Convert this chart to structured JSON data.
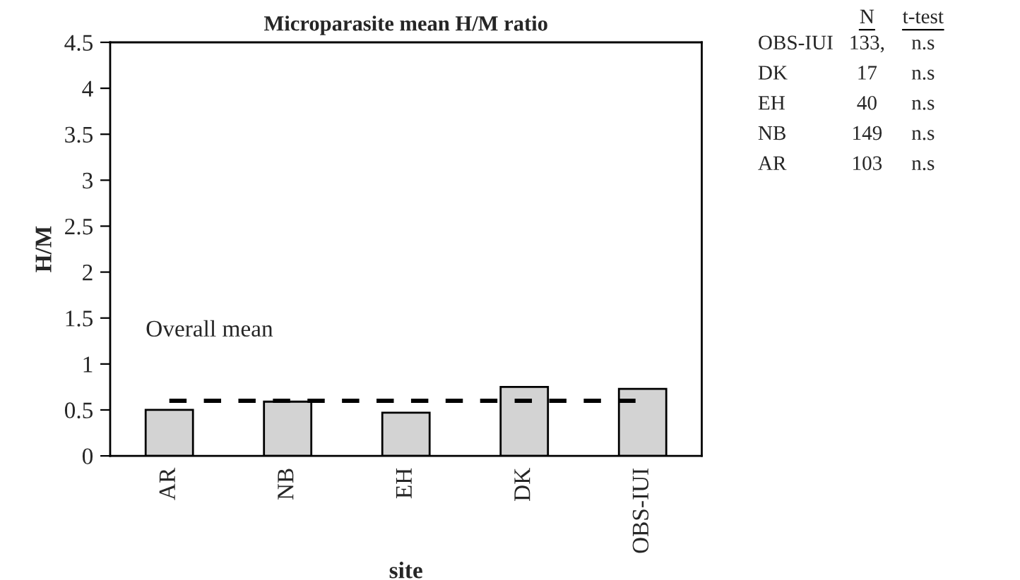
{
  "chart_data": {
    "type": "bar",
    "title": "Microparasite mean H/M ratio",
    "xlabel": "site",
    "ylabel": "H/M",
    "categories": [
      "AR",
      "NB",
      "EH",
      "DK",
      "OBS-IUI"
    ],
    "values": [
      0.5,
      0.59,
      0.47,
      0.75,
      0.73
    ],
    "color": "#d3d3d3",
    "ylim": [
      0,
      4.5
    ],
    "yticks": [
      0,
      0.5,
      1,
      1.5,
      2,
      2.5,
      3,
      3.5,
      4,
      4.5
    ],
    "grid": false,
    "legend": false,
    "ref_lines": [
      {
        "axis": "y",
        "value": 0.6,
        "label": "Overall mean",
        "color": "#000000",
        "line_style": "dashed"
      }
    ],
    "annotations": [
      "N",
      "t-test",
      "OBS-IUI",
      "133,",
      "n.s",
      "DK",
      "17",
      "n.s",
      "EH",
      "40",
      "n.s",
      "NB",
      "149",
      "n.s",
      "AR",
      "103",
      "n.s"
    ]
  }
}
